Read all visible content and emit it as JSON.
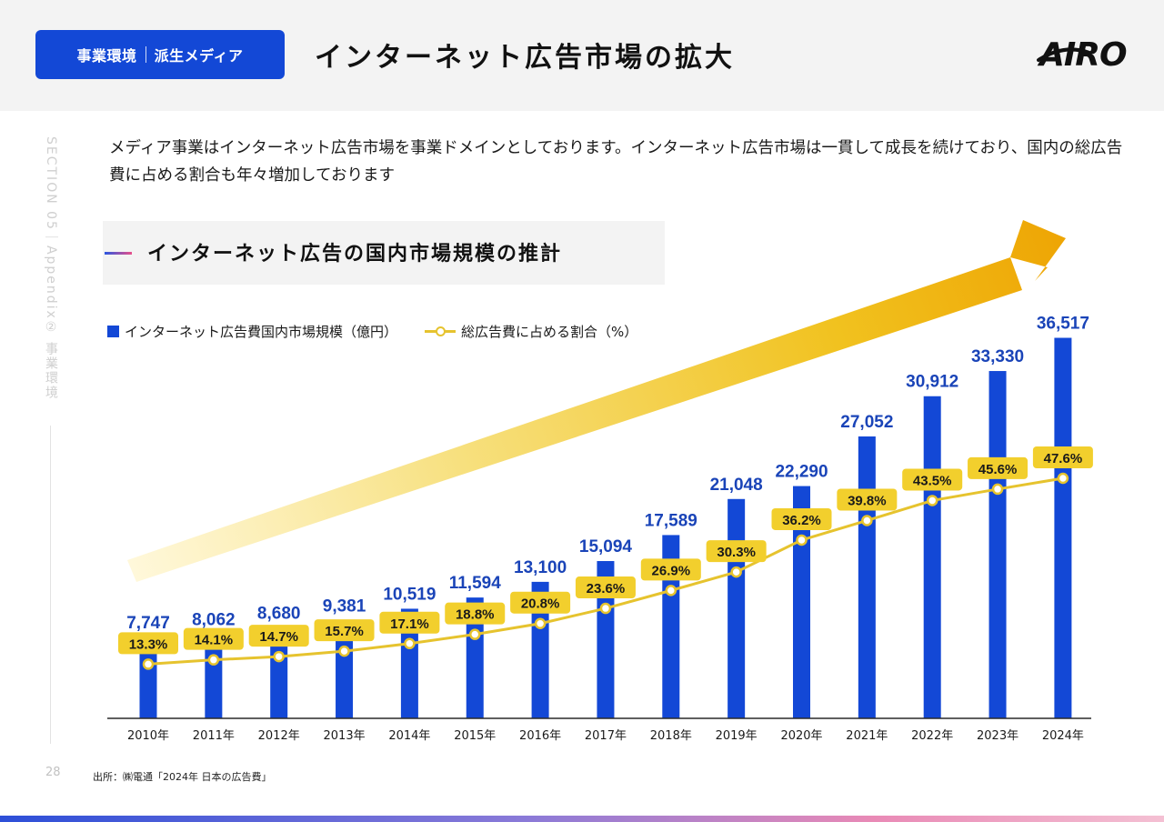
{
  "header": {
    "section_left": "事業環境",
    "section_right": "派生メディア",
    "title": "インターネット広告市場の拡大",
    "logo_text": "AIRO"
  },
  "sidebar": {
    "section_label": "SECTION 05｜Appendix② 事業環境",
    "page_number": "28"
  },
  "intro_text": "メディア事業はインターネット広告市場を事業ドメインとしております。インターネット広告市場は一貫して成長を続けており、国内の総広告費に占める割合も年々増加しております",
  "chart_subtitle": "インターネット広告の国内市場規模の推計",
  "legend": {
    "bar_label": "インターネット広告費国内市場規模（億円）",
    "line_label": "総広告費に占める割合（%）"
  },
  "source": "出所：㈱電通「2024年 日本の広告費」",
  "colors": {
    "bar": "#1348d6",
    "line": "#e6c32e",
    "badge": "#f2cf2d",
    "bar_value_text": "#1a44b8"
  },
  "chart_data": {
    "type": "bar",
    "categories": [
      "2010年",
      "2011年",
      "2012年",
      "2013年",
      "2014年",
      "2015年",
      "2016年",
      "2017年",
      "2018年",
      "2019年",
      "2020年",
      "2021年",
      "2022年",
      "2023年",
      "2024年"
    ],
    "series": [
      {
        "name": "インターネット広告費国内市場規模（億円）",
        "type": "bar",
        "values": [
          7747,
          8062,
          8680,
          9381,
          10519,
          11594,
          13100,
          15094,
          17589,
          21048,
          22290,
          27052,
          30912,
          33330,
          36517
        ],
        "labels": [
          "7,747",
          "8,062",
          "8,680",
          "9,381",
          "10,519",
          "11,594",
          "13,100",
          "15,094",
          "17,589",
          "21,048",
          "22,290",
          "27,052",
          "30,912",
          "33,330",
          "36,517"
        ]
      },
      {
        "name": "総広告費に占める割合（%）",
        "type": "line",
        "values": [
          13.3,
          14.1,
          14.7,
          15.7,
          17.1,
          18.8,
          20.8,
          23.6,
          26.9,
          30.3,
          36.2,
          39.8,
          43.5,
          45.6,
          47.6
        ],
        "labels": [
          "13.3%",
          "14.1%",
          "14.7%",
          "15.7%",
          "17.1%",
          "18.8%",
          "20.8%",
          "23.6%",
          "26.9%",
          "30.3%",
          "36.2%",
          "39.8%",
          "43.5%",
          "45.6%",
          "47.6%"
        ]
      }
    ],
    "grid": false,
    "legend_position": "top-left"
  }
}
